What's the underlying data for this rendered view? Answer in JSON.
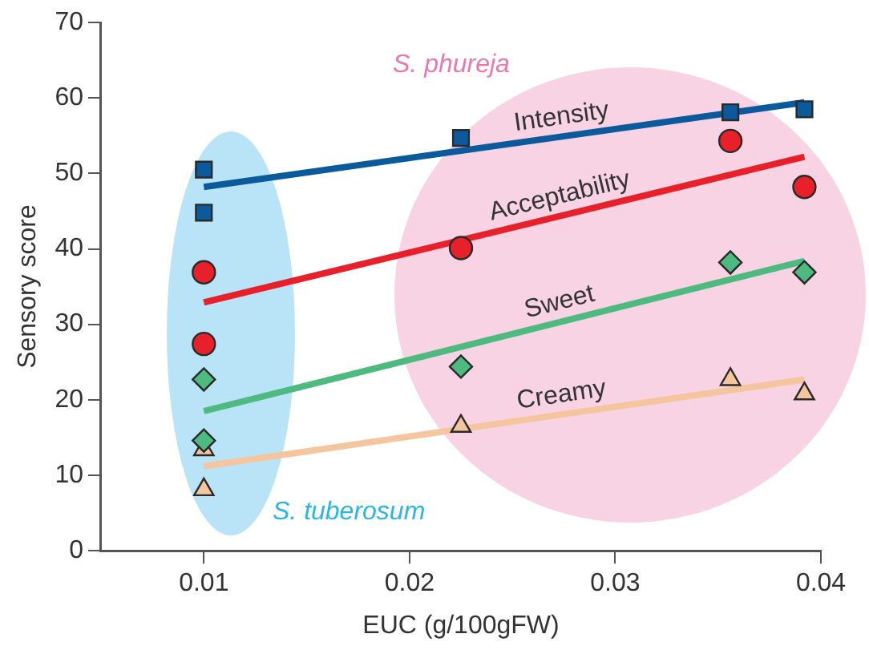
{
  "chart_data": {
    "type": "scatter",
    "xlabel": "EUC (g/100gFW)",
    "ylabel": "Sensory score",
    "xlim": [
      0.005,
      0.04
    ],
    "xticks": [
      0.01,
      0.02,
      0.03,
      0.04
    ],
    "ylim": [
      0,
      70
    ],
    "yticks": [
      0,
      10,
      20,
      30,
      40,
      50,
      60,
      70
    ],
    "grid": false,
    "legend": false,
    "annotations": [
      "S. phureja",
      "S. tuberosum"
    ],
    "series": [
      {
        "type": "scatter",
        "color": "#0a5a9c",
        "marker": "square",
        "x": [
          0.01,
          0.01,
          0.0225,
          0.0356,
          0.0392
        ],
        "values": [
          50.5,
          44.8,
          54.7,
          58.1,
          58.5
        ]
      },
      {
        "type": "scatter",
        "color": "#e8202a",
        "marker": "circle",
        "x": [
          0.01,
          0.01,
          0.0225,
          0.0356,
          0.0392
        ],
        "values": [
          36.9,
          27.4,
          40.1,
          54.3,
          48.2
        ]
      },
      {
        "type": "scatter",
        "color": "#4dbb7f",
        "marker": "diamond",
        "x": [
          0.01,
          0.01,
          0.0225,
          0.0356,
          0.0392
        ],
        "values": [
          22.7,
          14.6,
          24.4,
          38.2,
          36.9
        ]
      },
      {
        "type": "scatter",
        "color": "#f5c69e",
        "marker": "triangle",
        "x": [
          0.01,
          0.01,
          0.0225,
          0.0356,
          0.0392
        ],
        "values": [
          13.4,
          8.1,
          16.5,
          22.7,
          20.8
        ]
      },
      {
        "type": "line",
        "name": "Intensity",
        "color": "#0a5a9c",
        "marker": "none",
        "x": [
          0.01,
          0.0392
        ],
        "values": [
          48.2,
          59.4
        ]
      },
      {
        "type": "line",
        "name": "Acceptability",
        "color": "#e8202a",
        "marker": "none",
        "x": [
          0.01,
          0.0392
        ],
        "values": [
          32.9,
          52.2
        ]
      },
      {
        "type": "line",
        "name": "Sweet",
        "color": "#4dbb7f",
        "marker": "none",
        "x": [
          0.01,
          0.0392
        ],
        "values": [
          18.5,
          38.4
        ]
      },
      {
        "type": "line",
        "name": "Creamy",
        "color": "#f5c69e",
        "marker": "none",
        "x": [
          0.01,
          0.0392
        ],
        "values": [
          11.2,
          22.7
        ]
      }
    ]
  }
}
